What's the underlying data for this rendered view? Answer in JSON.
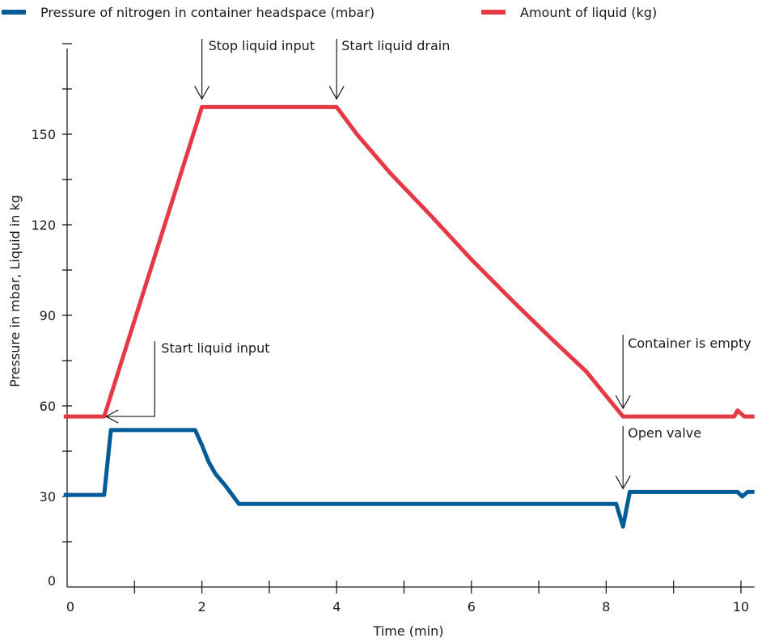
{
  "chart_data": {
    "type": "line",
    "title": "",
    "xlabel": "Time (min)",
    "ylabel": "Pressure in mbar, Liquid in kg",
    "xlim": [
      0,
      10.2
    ],
    "ylim": [
      0,
      165
    ],
    "x_ticks": [
      "0",
      "2",
      "4",
      "6",
      "8",
      "10"
    ],
    "x_tick_values": [
      0,
      2,
      4,
      6,
      8,
      10
    ],
    "x_minor_step": 1,
    "y_ticks": [
      "0",
      "30",
      "60",
      "90",
      "120",
      "150"
    ],
    "y_tick_values": [
      0,
      30,
      60,
      90,
      120,
      150
    ],
    "y_minor_step": 15,
    "grid": false,
    "legend_position": "top",
    "series": [
      {
        "name": "Pressure of nitrogen in container headspace (mbar)",
        "color": "#005b96",
        "points": [
          [
            -0.05,
            30.5
          ],
          [
            0.55,
            30.5
          ],
          [
            0.65,
            52
          ],
          [
            1.9,
            52
          ],
          [
            2.0,
            47
          ],
          [
            2.1,
            41.5
          ],
          [
            2.2,
            37.5
          ],
          [
            2.35,
            33.5
          ],
          [
            2.55,
            27.5
          ],
          [
            8.15,
            27.5
          ],
          [
            8.25,
            20
          ],
          [
            8.35,
            31.5
          ],
          [
            9.95,
            31.5
          ],
          [
            10.02,
            30
          ],
          [
            10.1,
            31.5
          ],
          [
            10.2,
            31.5
          ]
        ]
      },
      {
        "name": "Amount of liquid (kg)",
        "color": "#e63946",
        "points": [
          [
            -0.05,
            56.5
          ],
          [
            0.55,
            56.5
          ],
          [
            2.0,
            159
          ],
          [
            4.0,
            159
          ],
          [
            4.3,
            150
          ],
          [
            4.8,
            137
          ],
          [
            5.4,
            123
          ],
          [
            6.0,
            108.5
          ],
          [
            6.6,
            95
          ],
          [
            7.2,
            82
          ],
          [
            7.7,
            71.5
          ],
          [
            8.25,
            56.5
          ],
          [
            9.9,
            56.5
          ],
          [
            9.95,
            58.5
          ],
          [
            10.05,
            56.5
          ],
          [
            10.2,
            56.5
          ]
        ]
      }
    ],
    "annotations": [
      {
        "text": "Stop liquid input",
        "x": 2.0,
        "y": 159
      },
      {
        "text": "Start liquid drain",
        "x": 4.0,
        "y": 159
      },
      {
        "text": "Start liquid input",
        "x": 0.65,
        "y": 56.5
      },
      {
        "text": "Container is empty",
        "x": 8.25,
        "y": 56.5
      },
      {
        "text": "Open valve",
        "x": 8.25,
        "y": 31.5
      }
    ]
  }
}
